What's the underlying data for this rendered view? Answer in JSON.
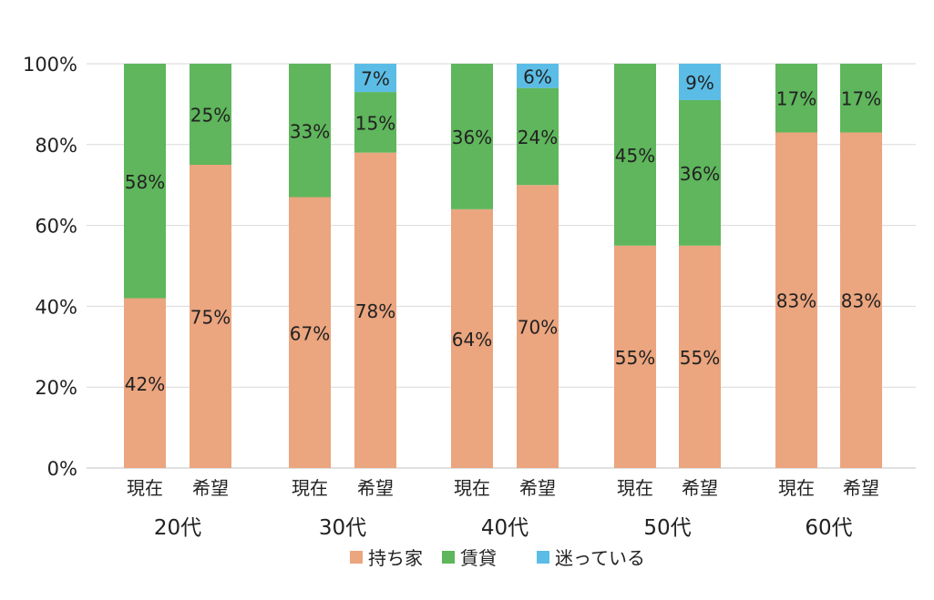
{
  "chart_data": {
    "type": "bar",
    "stacked": true,
    "ylim": [
      0,
      100
    ],
    "yticks": [
      "0%",
      "20%",
      "40%",
      "60%",
      "80%",
      "100%"
    ],
    "grid": true,
    "legend_position": "bottom",
    "groups": [
      "20代",
      "30代",
      "40代",
      "50代",
      "60代"
    ],
    "sub_categories": [
      "現在",
      "希望"
    ],
    "series": [
      {
        "name": "持ち家",
        "color": "#EBA57F",
        "values": [
          42,
          75,
          67,
          78,
          64,
          70,
          55,
          55,
          83,
          83
        ]
      },
      {
        "name": "賃貸",
        "color": "#5FB65C",
        "values": [
          58,
          25,
          33,
          15,
          36,
          24,
          45,
          36,
          17,
          17
        ]
      },
      {
        "name": "迷っている",
        "color": "#5BBDE6",
        "values": [
          0,
          0,
          0,
          7,
          0,
          6,
          0,
          9,
          0,
          0
        ]
      }
    ],
    "data_labels": [
      [
        "42%",
        "75%",
        "67%",
        "78%",
        "64%",
        "70%",
        "55%",
        "55%",
        "83%",
        "83%"
      ],
      [
        "58%",
        "25%",
        "33%",
        "15%",
        "36%",
        "24%",
        "45%",
        "36%",
        "17%",
        "17%"
      ],
      [
        "",
        "",
        "",
        "7%",
        "",
        "6%",
        "",
        "9%",
        "",
        ""
      ]
    ]
  }
}
